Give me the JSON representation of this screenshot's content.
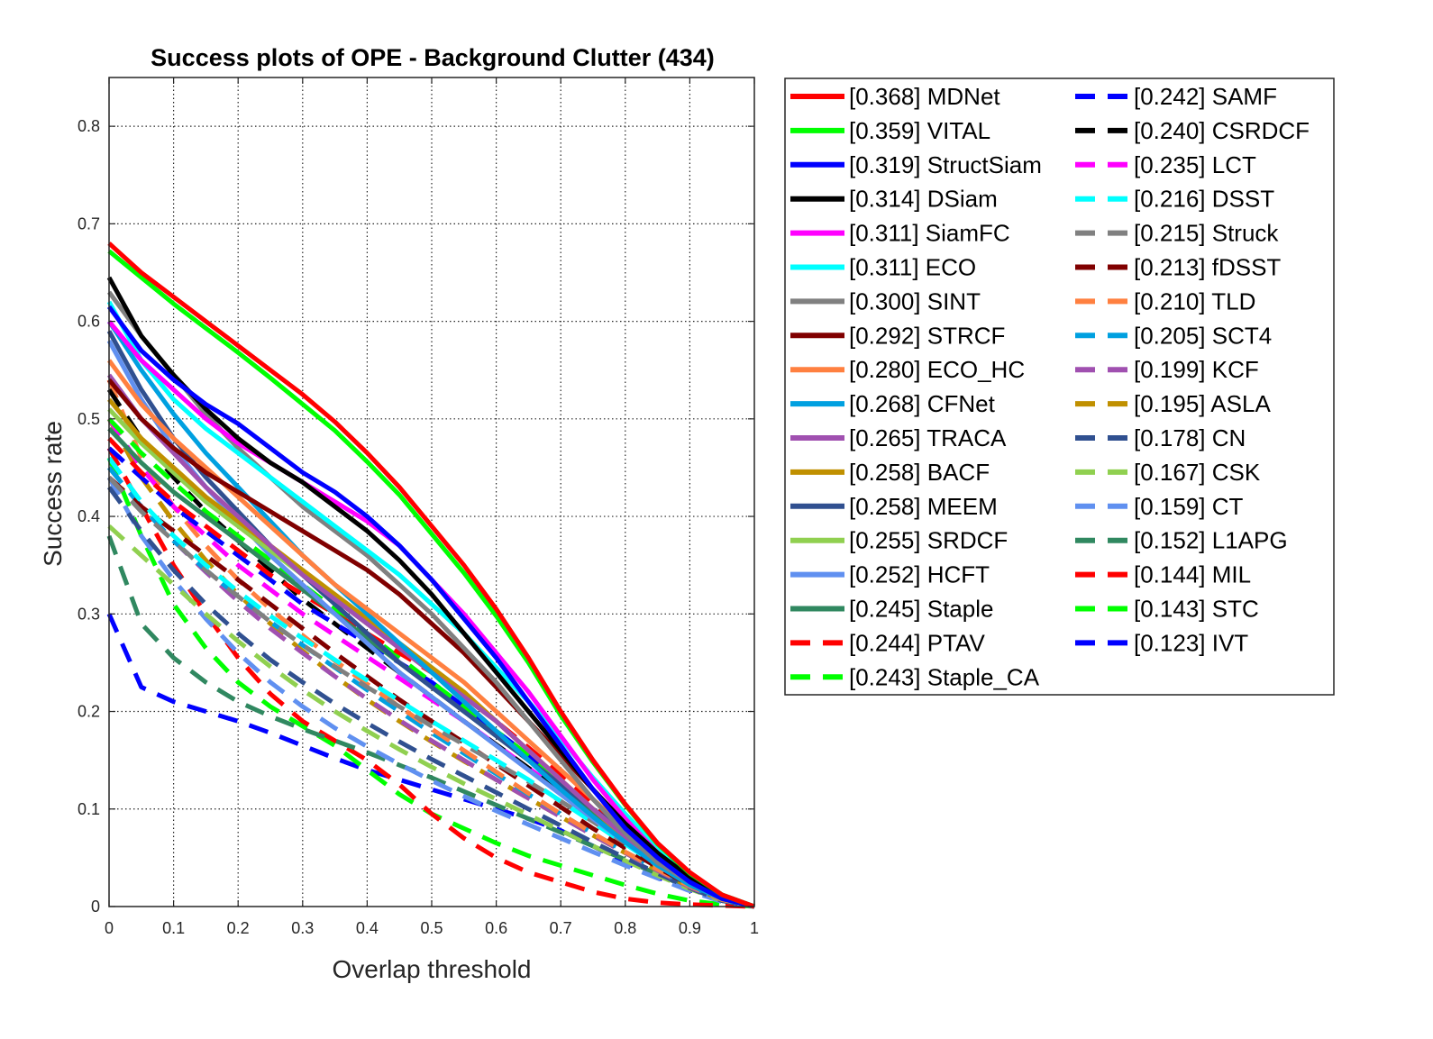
{
  "chart_data": {
    "type": "line",
    "title": "Success plots of OPE - Background Clutter (434)",
    "xlabel": "Overlap threshold",
    "ylabel": "Success rate",
    "xlim": [
      0,
      1
    ],
    "ylim": [
      0,
      0.85
    ],
    "xticks": [
      "0",
      "0.1",
      "0.2",
      "0.3",
      "0.4",
      "0.5",
      "0.6",
      "0.7",
      "0.8",
      "0.9",
      "1"
    ],
    "yticks": [
      "0",
      "0.1",
      "0.2",
      "0.3",
      "0.4",
      "0.5",
      "0.6",
      "0.7",
      "0.8"
    ],
    "grid": true,
    "legend_placement": "outside-right",
    "x": [
      0,
      0.05,
      0.1,
      0.15,
      0.2,
      0.25,
      0.3,
      0.35,
      0.4,
      0.45,
      0.5,
      0.55,
      0.6,
      0.65,
      0.7,
      0.75,
      0.8,
      0.85,
      0.9,
      0.95,
      1
    ],
    "series": [
      {
        "name": "[0.368] MDNet",
        "color": "#ff0000",
        "style": "solid",
        "values": [
          0.68,
          0.65,
          0.625,
          0.6,
          0.575,
          0.55,
          0.525,
          0.497,
          0.465,
          0.43,
          0.39,
          0.35,
          0.305,
          0.255,
          0.2,
          0.15,
          0.105,
          0.065,
          0.035,
          0.012,
          0
        ]
      },
      {
        "name": "[0.359] VITAL",
        "color": "#00ff00",
        "style": "solid",
        "values": [
          0.672,
          0.645,
          0.618,
          0.593,
          0.568,
          0.542,
          0.515,
          0.488,
          0.456,
          0.422,
          0.382,
          0.342,
          0.298,
          0.25,
          0.196,
          0.148,
          0.104,
          0.064,
          0.034,
          0.012,
          0
        ]
      },
      {
        "name": "[0.319] StructSiam",
        "color": "#0000ff",
        "style": "solid",
        "values": [
          0.615,
          0.57,
          0.54,
          0.515,
          0.495,
          0.47,
          0.445,
          0.425,
          0.4,
          0.37,
          0.335,
          0.295,
          0.255,
          0.21,
          0.165,
          0.12,
          0.08,
          0.05,
          0.025,
          0.008,
          0
        ]
      },
      {
        "name": "[0.314] DSiam",
        "color": "#000000",
        "style": "solid",
        "values": [
          0.645,
          0.585,
          0.545,
          0.51,
          0.48,
          0.455,
          0.435,
          0.41,
          0.385,
          0.355,
          0.32,
          0.28,
          0.24,
          0.2,
          0.16,
          0.12,
          0.085,
          0.055,
          0.03,
          0.01,
          0
        ]
      },
      {
        "name": "[0.311] SiamFC",
        "color": "#ff00ff",
        "style": "solid",
        "values": [
          0.6,
          0.56,
          0.53,
          0.5,
          0.475,
          0.455,
          0.435,
          0.415,
          0.395,
          0.37,
          0.335,
          0.3,
          0.26,
          0.22,
          0.175,
          0.13,
          0.09,
          0.055,
          0.028,
          0.01,
          0
        ]
      },
      {
        "name": "[0.311] ECO",
        "color": "#00ffff",
        "style": "solid",
        "values": [
          0.62,
          0.56,
          0.52,
          0.49,
          0.465,
          0.44,
          0.415,
          0.39,
          0.365,
          0.34,
          0.31,
          0.28,
          0.245,
          0.21,
          0.172,
          0.132,
          0.095,
          0.06,
          0.032,
          0.012,
          0
        ]
      },
      {
        "name": "[0.300] SINT",
        "color": "#808080",
        "style": "solid",
        "values": [
          0.63,
          0.585,
          0.545,
          0.505,
          0.47,
          0.44,
          0.41,
          0.385,
          0.36,
          0.33,
          0.3,
          0.265,
          0.23,
          0.19,
          0.15,
          0.11,
          0.075,
          0.045,
          0.025,
          0.008,
          0
        ]
      },
      {
        "name": "[0.292] STRCF",
        "color": "#800000",
        "style": "solid",
        "values": [
          0.54,
          0.5,
          0.47,
          0.445,
          0.425,
          0.405,
          0.385,
          0.365,
          0.345,
          0.32,
          0.29,
          0.26,
          0.225,
          0.19,
          0.155,
          0.12,
          0.085,
          0.055,
          0.03,
          0.01,
          0
        ]
      },
      {
        "name": "[0.280] ECO_HC",
        "color": "#ff8040",
        "style": "solid",
        "values": [
          0.56,
          0.515,
          0.48,
          0.45,
          0.42,
          0.39,
          0.36,
          0.33,
          0.305,
          0.28,
          0.255,
          0.23,
          0.2,
          0.17,
          0.14,
          0.11,
          0.08,
          0.05,
          0.028,
          0.01,
          0
        ]
      },
      {
        "name": "[0.268] CFNet",
        "color": "#00a0e0",
        "style": "solid",
        "values": [
          0.6,
          0.55,
          0.505,
          0.465,
          0.43,
          0.395,
          0.36,
          0.33,
          0.3,
          0.27,
          0.24,
          0.21,
          0.18,
          0.15,
          0.12,
          0.092,
          0.066,
          0.042,
          0.022,
          0.008,
          0
        ]
      },
      {
        "name": "[0.265] TRACA",
        "color": "#a050b0",
        "style": "solid",
        "values": [
          0.545,
          0.5,
          0.465,
          0.43,
          0.4,
          0.37,
          0.34,
          0.315,
          0.29,
          0.265,
          0.24,
          0.215,
          0.19,
          0.16,
          0.13,
          0.1,
          0.072,
          0.046,
          0.025,
          0.009,
          0
        ]
      },
      {
        "name": "[0.258] BACF",
        "color": "#c09000",
        "style": "solid",
        "values": [
          0.52,
          0.48,
          0.45,
          0.42,
          0.395,
          0.37,
          0.345,
          0.32,
          0.295,
          0.27,
          0.245,
          0.22,
          0.19,
          0.16,
          0.13,
          0.1,
          0.07,
          0.045,
          0.024,
          0.008,
          0
        ]
      },
      {
        "name": "[0.258] MEEM",
        "color": "#305090",
        "style": "solid",
        "values": [
          0.59,
          0.53,
          0.48,
          0.44,
          0.405,
          0.37,
          0.34,
          0.31,
          0.28,
          0.25,
          0.225,
          0.2,
          0.175,
          0.15,
          0.125,
          0.1,
          0.075,
          0.05,
          0.028,
          0.01,
          0
        ]
      },
      {
        "name": "[0.255] SRDCF",
        "color": "#90d050",
        "style": "solid",
        "values": [
          0.51,
          0.475,
          0.445,
          0.415,
          0.39,
          0.365,
          0.34,
          0.315,
          0.29,
          0.265,
          0.24,
          0.215,
          0.19,
          0.16,
          0.13,
          0.1,
          0.07,
          0.045,
          0.024,
          0.008,
          0
        ]
      },
      {
        "name": "[0.252] HCFT",
        "color": "#6090f0",
        "style": "solid",
        "values": [
          0.58,
          0.52,
          0.47,
          0.43,
          0.395,
          0.36,
          0.33,
          0.3,
          0.27,
          0.24,
          0.215,
          0.19,
          0.165,
          0.14,
          0.115,
          0.09,
          0.066,
          0.044,
          0.024,
          0.008,
          0
        ]
      },
      {
        "name": "[0.245] Staple",
        "color": "#308860",
        "style": "solid",
        "values": [
          0.49,
          0.455,
          0.425,
          0.4,
          0.375,
          0.35,
          0.325,
          0.3,
          0.275,
          0.25,
          0.225,
          0.2,
          0.175,
          0.15,
          0.123,
          0.096,
          0.07,
          0.045,
          0.024,
          0.008,
          0
        ]
      },
      {
        "name": "[0.244] PTAV",
        "color": "#ff0000",
        "style": "dashed",
        "values": [
          0.48,
          0.445,
          0.415,
          0.39,
          0.365,
          0.34,
          0.32,
          0.3,
          0.28,
          0.26,
          0.24,
          0.215,
          0.19,
          0.163,
          0.135,
          0.106,
          0.078,
          0.051,
          0.028,
          0.01,
          0
        ]
      },
      {
        "name": "[0.243] Staple_CA",
        "color": "#00ff00",
        "style": "dashed",
        "values": [
          0.5,
          0.465,
          0.435,
          0.405,
          0.38,
          0.355,
          0.33,
          0.305,
          0.28,
          0.255,
          0.23,
          0.205,
          0.18,
          0.155,
          0.128,
          0.1,
          0.074,
          0.048,
          0.026,
          0.009,
          0
        ]
      },
      {
        "name": "[0.242] SAMF",
        "color": "#0000ff",
        "style": "dashed",
        "values": [
          0.47,
          0.44,
          0.41,
          0.385,
          0.36,
          0.335,
          0.31,
          0.29,
          0.27,
          0.25,
          0.23,
          0.205,
          0.18,
          0.155,
          0.128,
          0.1,
          0.074,
          0.048,
          0.026,
          0.009,
          0
        ]
      },
      {
        "name": "[0.240] CSRDCF",
        "color": "#000000",
        "style": "dashed",
        "values": [
          0.53,
          0.48,
          0.44,
          0.405,
          0.375,
          0.345,
          0.315,
          0.29,
          0.265,
          0.24,
          0.215,
          0.19,
          0.166,
          0.142,
          0.118,
          0.094,
          0.07,
          0.046,
          0.025,
          0.009,
          0
        ]
      },
      {
        "name": "[0.235] LCT",
        "color": "#ff00ff",
        "style": "dashed",
        "values": [
          0.5,
          0.45,
          0.41,
          0.38,
          0.35,
          0.325,
          0.3,
          0.278,
          0.256,
          0.234,
          0.212,
          0.19,
          0.166,
          0.142,
          0.118,
          0.094,
          0.07,
          0.046,
          0.025,
          0.009,
          0
        ]
      },
      {
        "name": "[0.216] DSST",
        "color": "#00ffff",
        "style": "dashed",
        "values": [
          0.46,
          0.415,
          0.38,
          0.35,
          0.323,
          0.298,
          0.275,
          0.253,
          0.232,
          0.211,
          0.19,
          0.17,
          0.15,
          0.13,
          0.108,
          0.086,
          0.064,
          0.042,
          0.023,
          0.008,
          0
        ]
      },
      {
        "name": "[0.215] Struck",
        "color": "#808080",
        "style": "dashed",
        "values": [
          0.44,
          0.405,
          0.375,
          0.345,
          0.318,
          0.292,
          0.268,
          0.246,
          0.225,
          0.205,
          0.185,
          0.166,
          0.147,
          0.128,
          0.108,
          0.087,
          0.065,
          0.043,
          0.023,
          0.008,
          0
        ]
      },
      {
        "name": "[0.213] fDSST",
        "color": "#800000",
        "style": "dashed",
        "values": [
          0.44,
          0.41,
          0.385,
          0.36,
          0.335,
          0.31,
          0.285,
          0.26,
          0.236,
          0.212,
          0.19,
          0.168,
          0.146,
          0.124,
          0.102,
          0.08,
          0.06,
          0.04,
          0.022,
          0.008,
          0
        ]
      },
      {
        "name": "[0.210] TLD",
        "color": "#ff8040",
        "style": "dashed",
        "values": [
          0.54,
          0.46,
          0.41,
          0.37,
          0.335,
          0.305,
          0.278,
          0.252,
          0.228,
          0.205,
          0.182,
          0.16,
          0.138,
          0.116,
          0.095,
          0.075,
          0.056,
          0.038,
          0.021,
          0.007,
          0
        ]
      },
      {
        "name": "[0.205] SCT4",
        "color": "#00a0e0",
        "style": "dashed",
        "values": [
          0.45,
          0.41,
          0.375,
          0.345,
          0.318,
          0.292,
          0.268,
          0.245,
          0.222,
          0.2,
          0.178,
          0.157,
          0.136,
          0.115,
          0.095,
          0.075,
          0.056,
          0.038,
          0.021,
          0.007,
          0
        ]
      },
      {
        "name": "[0.199] KCF",
        "color": "#a050b0",
        "style": "dashed",
        "values": [
          0.45,
          0.41,
          0.375,
          0.343,
          0.313,
          0.285,
          0.26,
          0.236,
          0.213,
          0.191,
          0.17,
          0.15,
          0.13,
          0.111,
          0.092,
          0.073,
          0.055,
          0.037,
          0.02,
          0.007,
          0
        ]
      },
      {
        "name": "[0.195] ASLA",
        "color": "#c09000",
        "style": "dashed",
        "values": [
          0.5,
          0.44,
          0.395,
          0.355,
          0.32,
          0.29,
          0.262,
          0.236,
          0.212,
          0.19,
          0.169,
          0.149,
          0.13,
          0.111,
          0.092,
          0.073,
          0.055,
          0.037,
          0.02,
          0.007,
          0
        ]
      },
      {
        "name": "[0.178] CN",
        "color": "#305090",
        "style": "dashed",
        "values": [
          0.43,
          0.385,
          0.345,
          0.31,
          0.28,
          0.253,
          0.23,
          0.208,
          0.188,
          0.169,
          0.151,
          0.134,
          0.117,
          0.1,
          0.083,
          0.066,
          0.05,
          0.034,
          0.019,
          0.006,
          0
        ]
      },
      {
        "name": "[0.167] CSK",
        "color": "#90d050",
        "style": "dashed",
        "values": [
          0.39,
          0.36,
          0.33,
          0.3,
          0.272,
          0.246,
          0.222,
          0.2,
          0.18,
          0.161,
          0.143,
          0.126,
          0.11,
          0.094,
          0.078,
          0.062,
          0.047,
          0.032,
          0.018,
          0.006,
          0
        ]
      },
      {
        "name": "[0.159] CT",
        "color": "#6090f0",
        "style": "dashed",
        "values": [
          0.44,
          0.38,
          0.335,
          0.295,
          0.26,
          0.23,
          0.205,
          0.183,
          0.164,
          0.146,
          0.129,
          0.113,
          0.098,
          0.084,
          0.07,
          0.056,
          0.042,
          0.029,
          0.016,
          0.005,
          0
        ]
      },
      {
        "name": "[0.152] L1APG",
        "color": "#308860",
        "style": "dashed",
        "values": [
          0.38,
          0.29,
          0.255,
          0.23,
          0.21,
          0.195,
          0.182,
          0.17,
          0.158,
          0.145,
          0.132,
          0.118,
          0.104,
          0.09,
          0.076,
          0.062,
          0.048,
          0.033,
          0.019,
          0.007,
          0
        ]
      },
      {
        "name": "[0.144] MIL",
        "color": "#ff0000",
        "style": "dashed",
        "values": [
          0.47,
          0.41,
          0.35,
          0.3,
          0.255,
          0.218,
          0.19,
          0.17,
          0.15,
          0.125,
          0.095,
          0.07,
          0.05,
          0.035,
          0.025,
          0.015,
          0.008,
          0.004,
          0.002,
          0.001,
          0
        ]
      },
      {
        "name": "[0.143] STC",
        "color": "#00ff00",
        "style": "dashed",
        "values": [
          0.46,
          0.38,
          0.31,
          0.265,
          0.23,
          0.205,
          0.185,
          0.165,
          0.14,
          0.115,
          0.095,
          0.08,
          0.065,
          0.052,
          0.042,
          0.032,
          0.022,
          0.013,
          0.006,
          0.002,
          0
        ]
      },
      {
        "name": "[0.123] IVT",
        "color": "#0000ff",
        "style": "dashed",
        "values": [
          0.3,
          0.225,
          0.21,
          0.2,
          0.19,
          0.178,
          0.165,
          0.152,
          0.14,
          0.13,
          0.12,
          0.11,
          0.1,
          0.09,
          0.078,
          0.062,
          0.045,
          0.03,
          0.017,
          0.006,
          0
        ]
      }
    ]
  }
}
